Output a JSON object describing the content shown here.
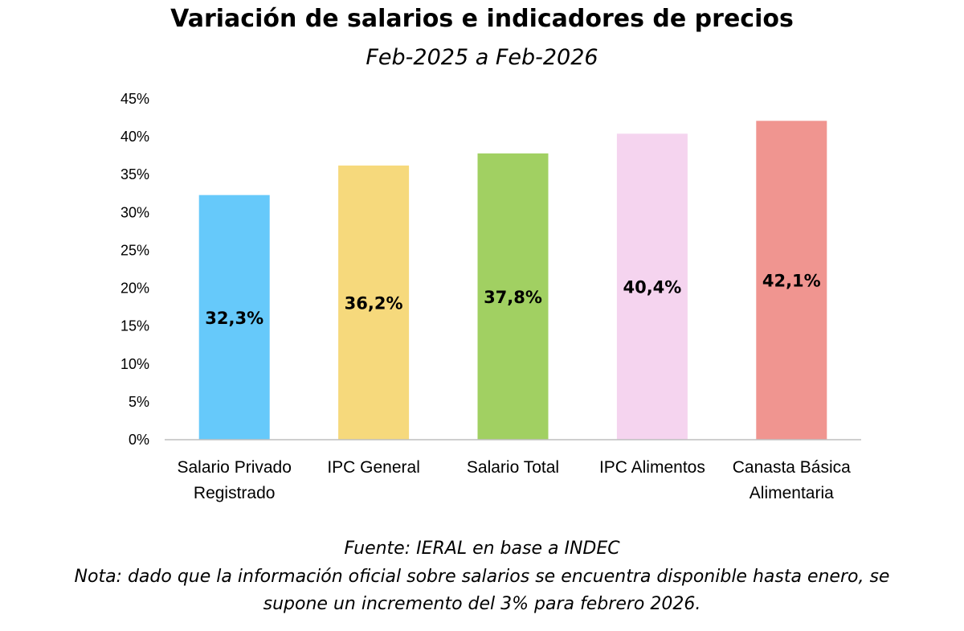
{
  "chart_data": {
    "type": "bar",
    "title": "Variación de salarios e indicadores de precios",
    "subtitle": "Feb-2025 a Feb-2026",
    "categories": [
      [
        "Salario Privado",
        "Registrado"
      ],
      [
        "IPC General"
      ],
      [
        "Salario Total"
      ],
      [
        "IPC Alimentos"
      ],
      [
        "Canasta Básica",
        "Alimentaria"
      ]
    ],
    "values": [
      32.3,
      36.2,
      37.8,
      40.4,
      42.1
    ],
    "data_labels": [
      "32,3%",
      "36,2%",
      "37,8%",
      "40,4%",
      "42,1%"
    ],
    "colors": [
      "#66c9fa",
      "#f6d97c",
      "#a1d062",
      "#f5d4ef",
      "#f09590"
    ],
    "ylim": [
      0,
      45
    ],
    "yticks": [
      0,
      5,
      10,
      15,
      20,
      25,
      30,
      35,
      40,
      45
    ],
    "ytick_labels": [
      "0%",
      "5%",
      "10%",
      "15%",
      "20%",
      "25%",
      "30%",
      "35%",
      "40%",
      "45%"
    ],
    "grid": false,
    "legend": "none",
    "xlabel": "",
    "ylabel": ""
  },
  "footer": {
    "source": "Fuente: IERAL en base a INDEC",
    "note_line1": "Nota: dado que la información oficial sobre salarios se encuentra disponible hasta enero, se",
    "note_line2": "supone un incremento del 3% para febrero 2026."
  }
}
